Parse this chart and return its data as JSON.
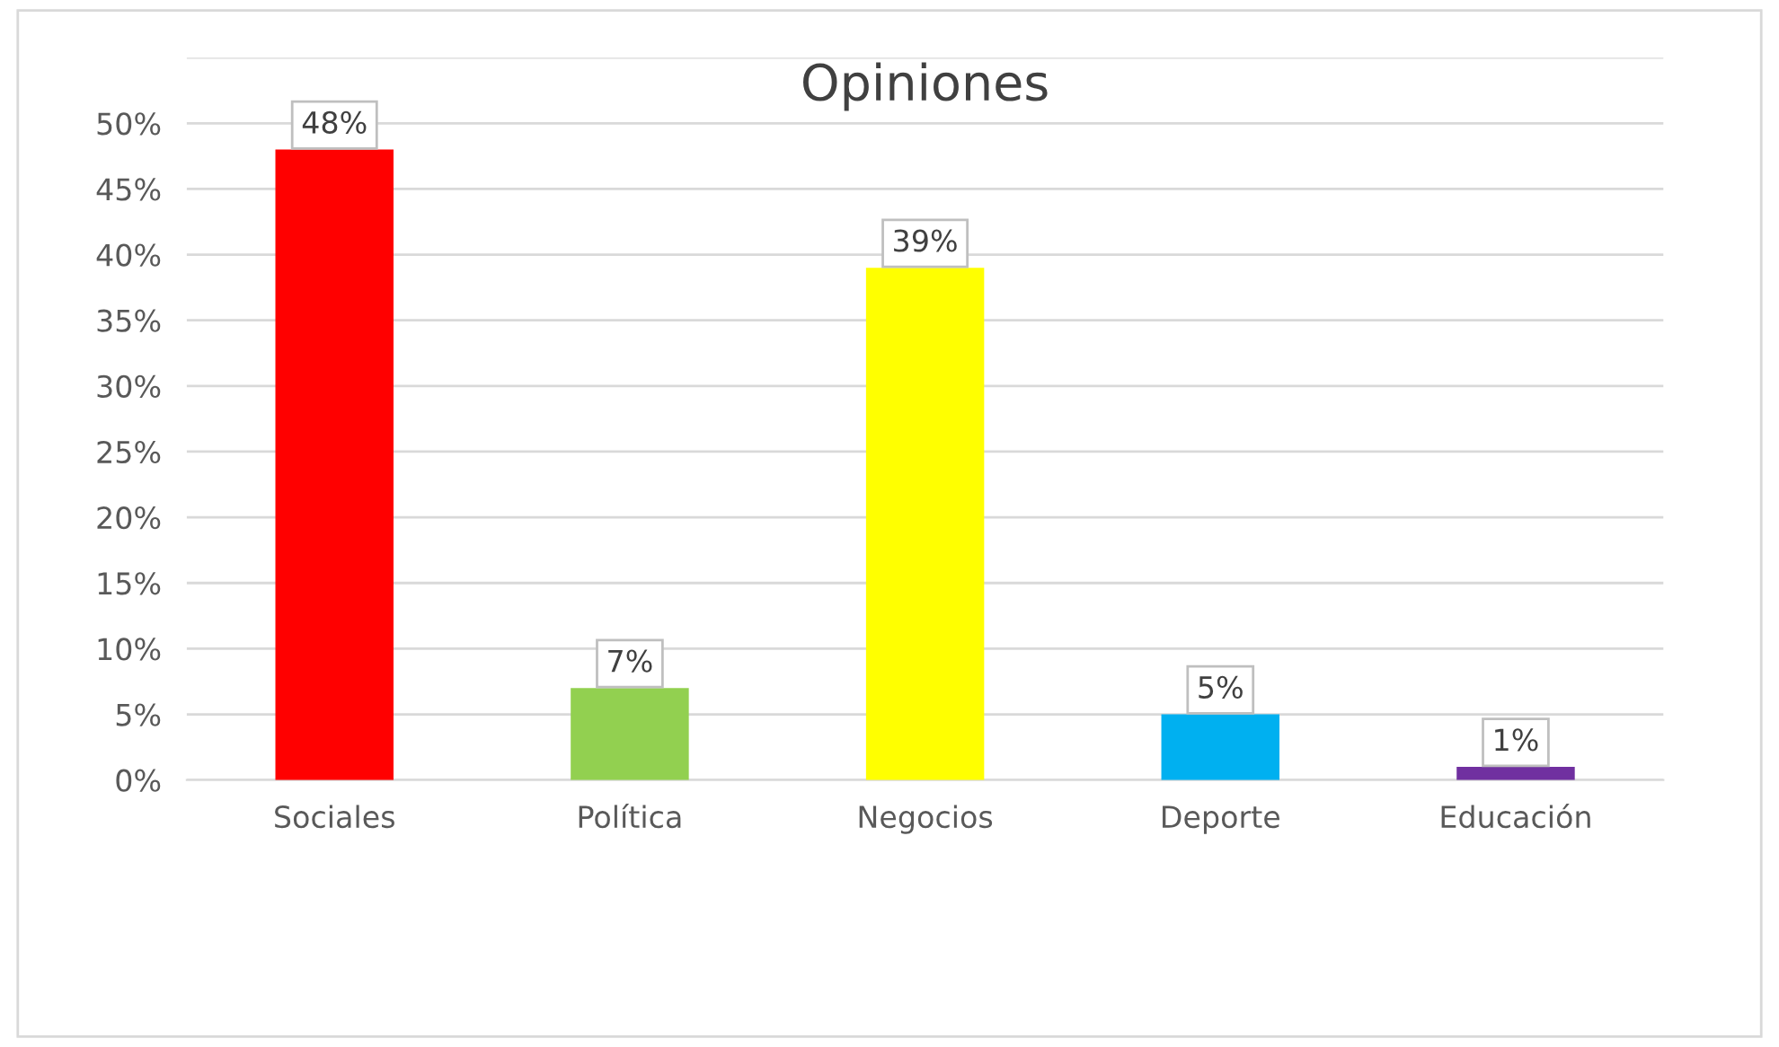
{
  "chart_data": {
    "type": "bar",
    "title": "Opiniones",
    "categories": [
      "Sociales",
      "Política",
      "Negocios",
      "Deporte",
      "Educación"
    ],
    "values": [
      48,
      7,
      39,
      5,
      1
    ],
    "colors": [
      "#ff0000",
      "#92d050",
      "#ffff00",
      "#00b0f0",
      "#7030a0"
    ],
    "value_labels": [
      "48%",
      "7%",
      "39%",
      "5%",
      "1%"
    ],
    "ylim": [
      0,
      55
    ],
    "yticks": [
      {
        "value": 0,
        "label": "0%"
      },
      {
        "value": 5,
        "label": "5%"
      },
      {
        "value": 10,
        "label": "10%"
      },
      {
        "value": 15,
        "label": "15%"
      },
      {
        "value": 20,
        "label": "20%"
      },
      {
        "value": 25,
        "label": "25%"
      },
      {
        "value": 30,
        "label": "30%"
      },
      {
        "value": 35,
        "label": "35%"
      },
      {
        "value": 40,
        "label": "40%"
      },
      {
        "value": 45,
        "label": "45%"
      },
      {
        "value": 50,
        "label": "50%"
      },
      {
        "value": 55,
        "label": null
      }
    ],
    "grid": "y",
    "legend": false
  }
}
